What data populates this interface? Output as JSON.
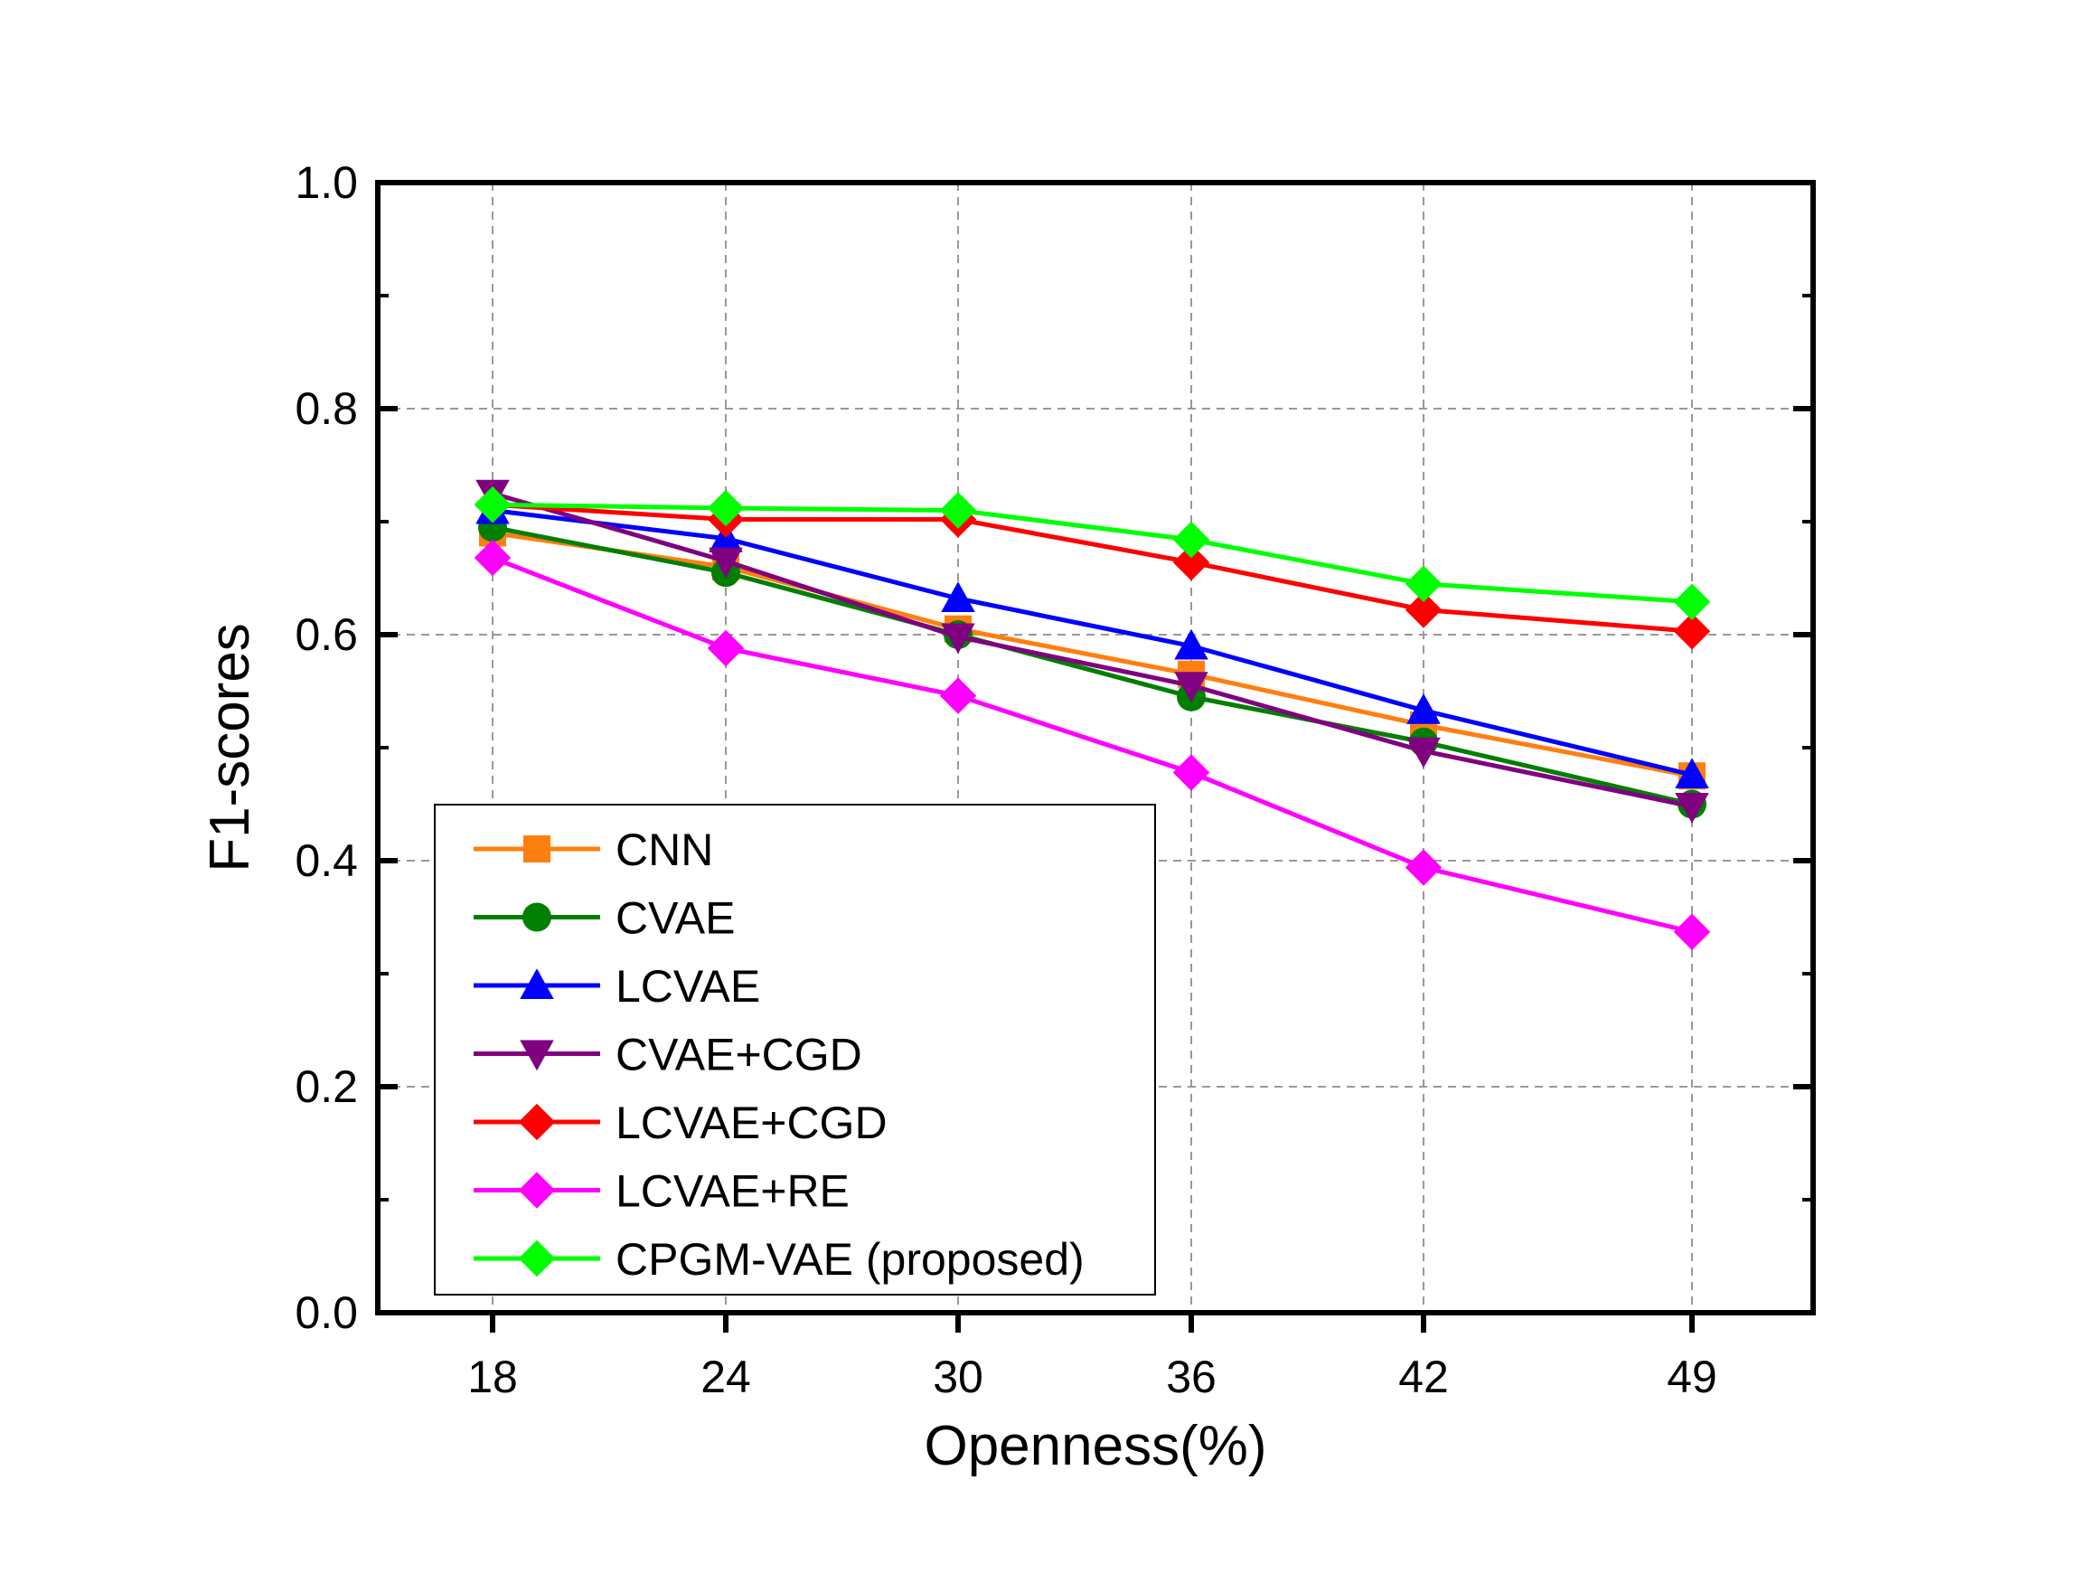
{
  "chart_data": {
    "type": "line",
    "title": "",
    "xlabel": "Openness(%)",
    "ylabel": "F1-scores",
    "categories": [
      "18",
      "24",
      "30",
      "36",
      "42",
      "49"
    ],
    "ylim": [
      0.0,
      1.0
    ],
    "yticks": [
      "0.0",
      "0.2",
      "0.4",
      "0.6",
      "0.8",
      "1.0"
    ],
    "ytick_values": [
      0.0,
      0.2,
      0.4,
      0.6,
      0.8,
      1.0
    ],
    "grid": true,
    "legend_position": "bottom-left",
    "series": [
      {
        "name": "CNN",
        "color": "#ff7f0e",
        "marker": "square",
        "values": [
          0.69,
          0.66,
          0.605,
          0.565,
          0.52,
          0.475
        ]
      },
      {
        "name": "CVAE",
        "color": "#007f00",
        "marker": "circle",
        "values": [
          0.695,
          0.655,
          0.6,
          0.545,
          0.505,
          0.45
        ]
      },
      {
        "name": "LCVAE",
        "color": "#0000ff",
        "marker": "triangle-up",
        "values": [
          0.71,
          0.685,
          0.632,
          0.59,
          0.533,
          0.476
        ]
      },
      {
        "name": "CVAE+CGD",
        "color": "#800080",
        "marker": "triangle-down",
        "values": [
          0.725,
          0.665,
          0.598,
          0.555,
          0.497,
          0.448
        ]
      },
      {
        "name": "LCVAE+CGD",
        "color": "#ff0000",
        "marker": "diamond",
        "values": [
          0.715,
          0.702,
          0.702,
          0.664,
          0.622,
          0.603
        ]
      },
      {
        "name": "LCVAE+RE",
        "color": "#ff00ff",
        "marker": "diamond",
        "values": [
          0.668,
          0.588,
          0.546,
          0.478,
          0.394,
          0.337
        ]
      },
      {
        "name": "CPGM-VAE (proposed)",
        "color": "#00ff00",
        "marker": "diamond",
        "values": [
          0.715,
          0.712,
          0.71,
          0.684,
          0.645,
          0.629
        ]
      }
    ]
  }
}
